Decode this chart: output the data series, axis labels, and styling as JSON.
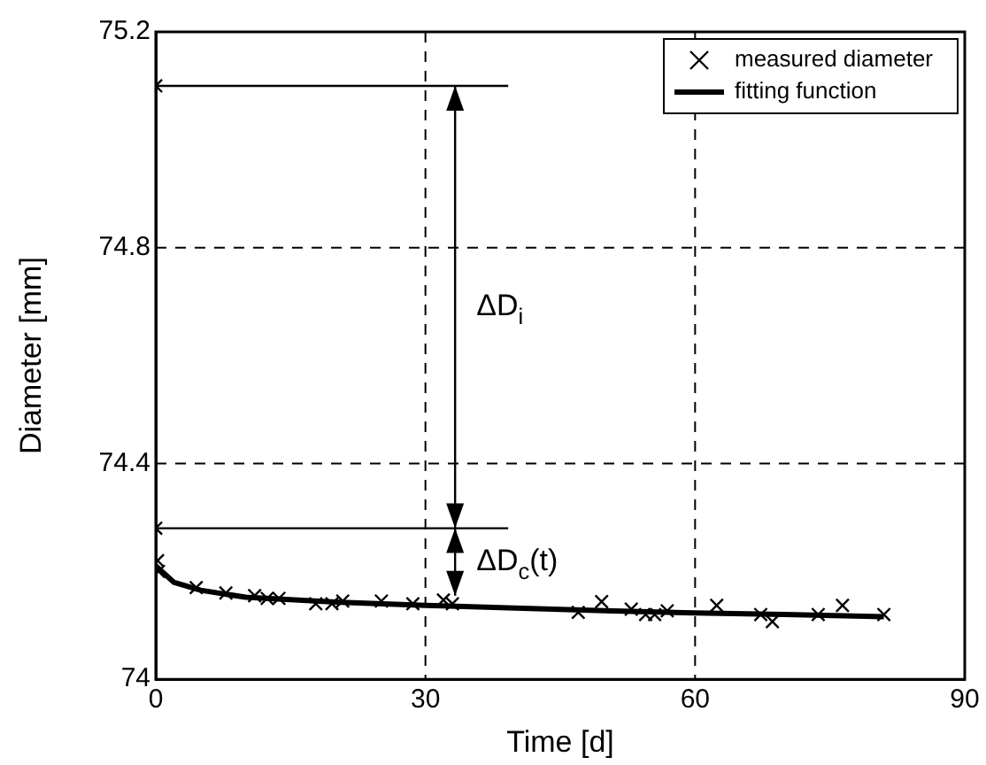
{
  "chart_data": {
    "type": "scatter",
    "xlabel": "Time [d]",
    "ylabel": "Diameter [mm]",
    "xlim": [
      0,
      90
    ],
    "xticks": [
      0,
      30,
      60,
      90
    ],
    "ylim": [
      74,
      75.2
    ],
    "yticks": [
      74,
      74.4,
      74.8,
      75.2
    ],
    "grid": true,
    "legend": "top right",
    "series": [
      {
        "name": "measured diameter",
        "marker": "cross",
        "color": "#000000",
        "x": [
          0,
          0,
          0.2,
          0.3,
          4.5,
          7.8,
          11,
          12.4,
          13.7,
          17.8,
          19.6,
          20.8,
          25.1,
          28.6,
          32,
          33,
          47,
          49.6,
          52.9,
          54.5,
          55.5,
          56.9,
          62.4,
          67.3,
          68.6,
          73.7,
          76.4,
          81
        ],
        "values": [
          75.1,
          74.28,
          74.22,
          74.2,
          74.17,
          74.16,
          74.155,
          74.15,
          74.15,
          74.14,
          74.14,
          74.145,
          74.145,
          74.14,
          74.147,
          74.14,
          74.124,
          74.144,
          74.13,
          74.12,
          74.12,
          74.127,
          74.137,
          74.12,
          74.107,
          74.12,
          74.137,
          74.12
        ]
      },
      {
        "name": "fitting function",
        "type": "line",
        "marker": "none",
        "line_style": "solid",
        "color": "#000000",
        "x": [
          0,
          2,
          5,
          10,
          20,
          30,
          40,
          50,
          60,
          70,
          81
        ],
        "values": [
          74.21,
          74.18,
          74.165,
          74.152,
          74.143,
          74.137,
          74.132,
          74.127,
          74.123,
          74.12,
          74.116
        ]
      }
    ],
    "ref_lines": [
      {
        "axis": "y",
        "value": 75.1,
        "label": null
      },
      {
        "axis": "y",
        "value": 74.28,
        "label": null
      }
    ],
    "annotations": [
      "ΔD$_{i}$",
      "ΔD$_{c}$(t)"
    ]
  }
}
